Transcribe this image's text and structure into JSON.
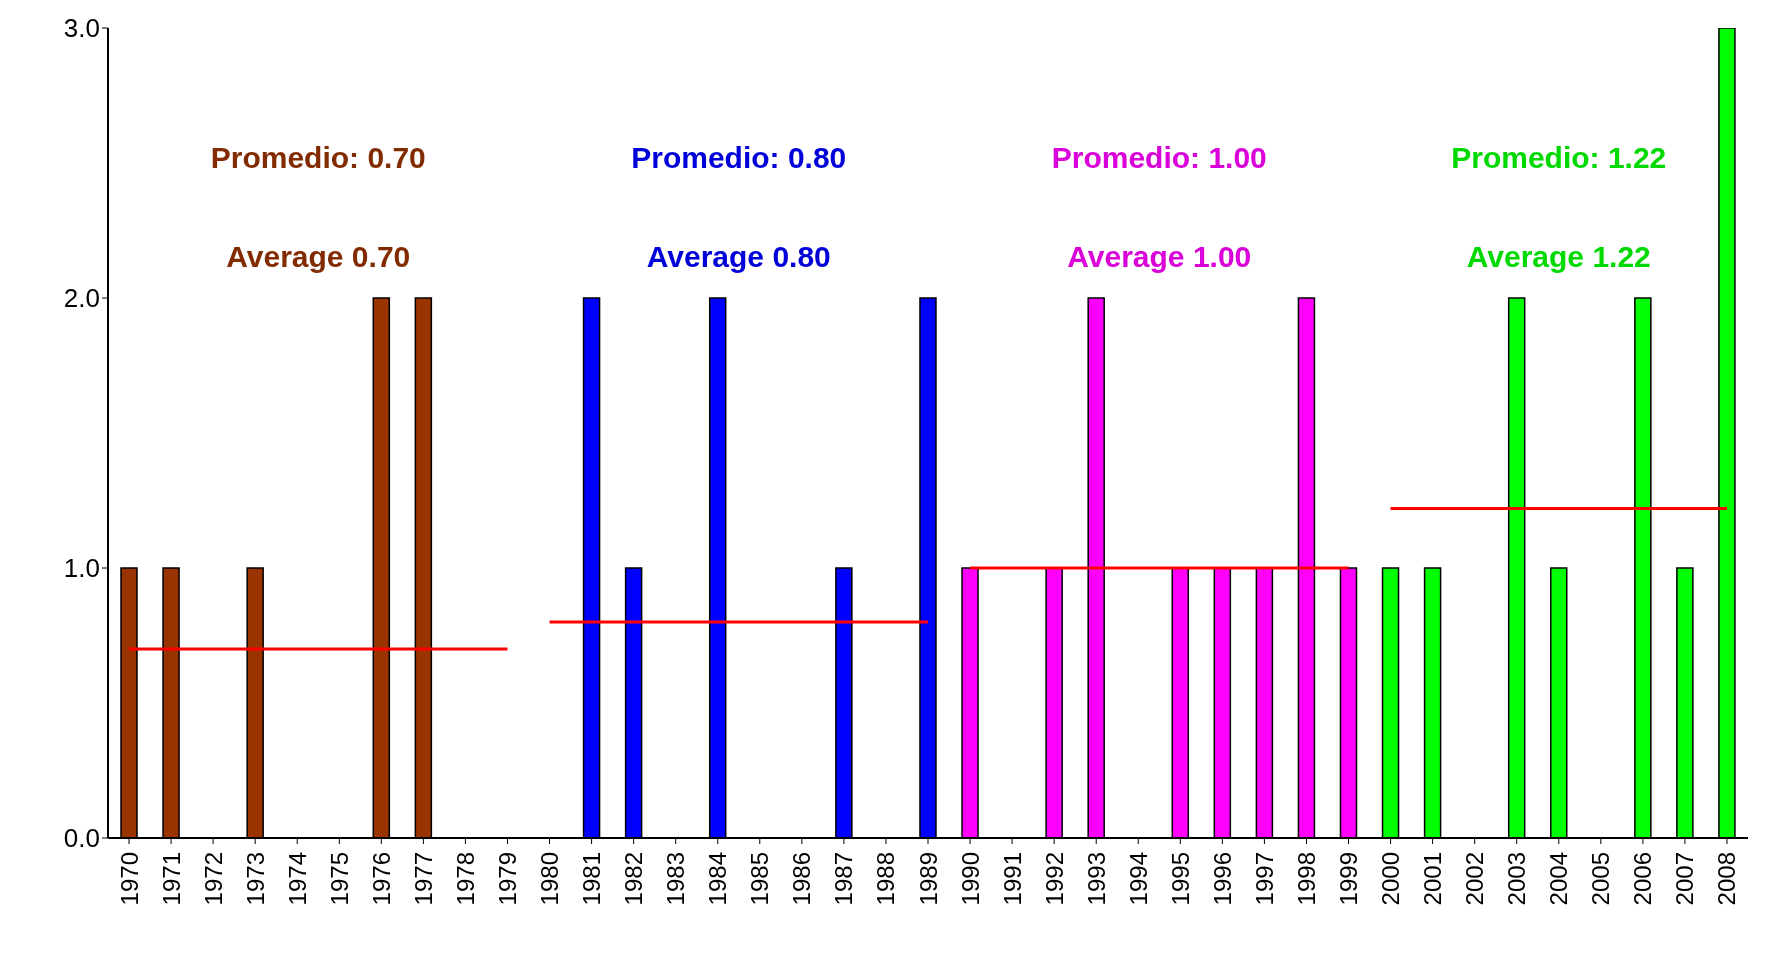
{
  "chart_data": {
    "type": "bar",
    "categories": [
      "1970",
      "1971",
      "1972",
      "1973",
      "1974",
      "1975",
      "1976",
      "1977",
      "1978",
      "1979",
      "1980",
      "1981",
      "1982",
      "1983",
      "1984",
      "1985",
      "1986",
      "1987",
      "1988",
      "1989",
      "1990",
      "1991",
      "1992",
      "1993",
      "1994",
      "1995",
      "1996",
      "1997",
      "1998",
      "1999",
      "2000",
      "2001",
      "2002",
      "2003",
      "2004",
      "2005",
      "2006",
      "2007",
      "2008"
    ],
    "ylim": [
      0,
      3
    ],
    "yticks": [
      {
        "value": 0,
        "label": "0.0"
      },
      {
        "value": 1,
        "label": "1.0"
      },
      {
        "value": 2,
        "label": "2.0"
      },
      {
        "value": 3,
        "label": "3.0"
      }
    ],
    "grid": false,
    "legend": false,
    "series": [
      {
        "values": [
          1,
          1,
          0,
          1,
          0,
          0,
          2,
          2,
          0,
          0,
          0,
          2,
          1,
          0,
          2,
          0,
          0,
          1,
          0,
          2,
          1,
          0,
          1,
          2,
          0,
          1,
          1,
          1,
          2,
          1,
          1,
          1,
          0,
          2,
          1,
          0,
          2,
          1,
          3
        ],
        "colors": [
          "#993300",
          "#993300",
          "#993300",
          "#993300",
          "#993300",
          "#993300",
          "#993300",
          "#993300",
          "#993300",
          "#993300",
          "#0000ff",
          "#0000ff",
          "#0000ff",
          "#0000ff",
          "#0000ff",
          "#0000ff",
          "#0000ff",
          "#0000ff",
          "#0000ff",
          "#0000ff",
          "#ff00ff",
          "#ff00ff",
          "#ff00ff",
          "#ff00ff",
          "#ff00ff",
          "#ff00ff",
          "#ff00ff",
          "#ff00ff",
          "#ff00ff",
          "#ff00ff",
          "#00ff00",
          "#00ff00",
          "#00ff00",
          "#00ff00",
          "#00ff00",
          "#00ff00",
          "#00ff00",
          "#00ff00",
          "#00ff00"
        ]
      },
      {
        "type": "line",
        "values": [
          0.7,
          0.7,
          0.7,
          0.7,
          0.7,
          0.7,
          0.7,
          0.7,
          0.7,
          0.7,
          null,
          null,
          null,
          null,
          null,
          null,
          null,
          null,
          null,
          null,
          null,
          null,
          null,
          null,
          null,
          null,
          null,
          null,
          null,
          null,
          null,
          null,
          null,
          null,
          null,
          null,
          null,
          null,
          null
        ],
        "color": "#ff0000"
      },
      {
        "type": "line",
        "values": [
          null,
          null,
          null,
          null,
          null,
          null,
          null,
          null,
          null,
          null,
          0.8,
          0.8,
          0.8,
          0.8,
          0.8,
          0.8,
          0.8,
          0.8,
          0.8,
          0.8,
          null,
          null,
          null,
          null,
          null,
          null,
          null,
          null,
          null,
          null,
          null,
          null,
          null,
          null,
          null,
          null,
          null,
          null,
          null
        ],
        "color": "#ff0000"
      },
      {
        "type": "line",
        "values": [
          null,
          null,
          null,
          null,
          null,
          null,
          null,
          null,
          null,
          null,
          null,
          null,
          null,
          null,
          null,
          null,
          null,
          null,
          null,
          null,
          1.0,
          1.0,
          1.0,
          1.0,
          1.0,
          1.0,
          1.0,
          1.0,
          1.0,
          1.0,
          null,
          null,
          null,
          null,
          null,
          null,
          null,
          null,
          null
        ],
        "color": "#ff0000"
      },
      {
        "type": "line",
        "values": [
          null,
          null,
          null,
          null,
          null,
          null,
          null,
          null,
          null,
          null,
          null,
          null,
          null,
          null,
          null,
          null,
          null,
          null,
          null,
          null,
          null,
          null,
          null,
          null,
          null,
          null,
          null,
          null,
          null,
          null,
          1.22,
          1.22,
          1.22,
          1.22,
          1.22,
          1.22,
          1.22,
          1.22,
          1.22
        ],
        "color": "#ff0000"
      }
    ],
    "annotations": [
      "Promedio: 0.70",
      "Average 0.70",
      "Promedio: 0.80",
      "Average 0.80",
      "Promedio: 1.00",
      "Average 1.00",
      "Promedio: 1.22",
      "Average 1.22"
    ]
  }
}
